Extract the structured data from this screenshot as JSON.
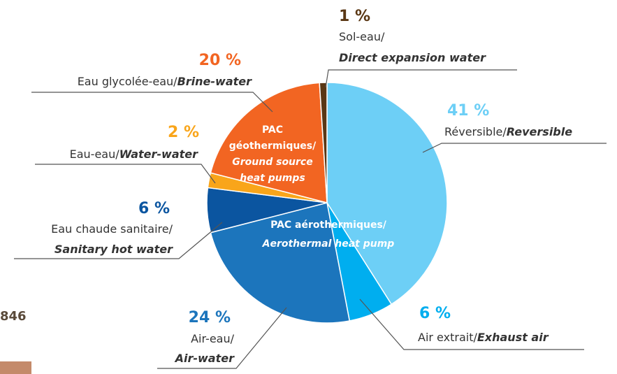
{
  "chart_data": {
    "type": "pie",
    "categories": [
      {
        "fr": "Réversible/",
        "en": "Reversible"
      },
      {
        "fr": "Air extrait/",
        "en": "Exhaust air"
      },
      {
        "fr": "Air-eau/",
        "en": "Air-water"
      },
      {
        "fr": "Eau chaude sanitaire/",
        "en": "Sanitary hot water"
      },
      {
        "fr": "Eau-eau/",
        "en": "Water-water"
      },
      {
        "fr": "Eau glycolée-eau/",
        "en": "Brine-water"
      },
      {
        "fr": "Sol-eau/",
        "en": "Direct expansion water"
      }
    ],
    "values": [
      41,
      6,
      24,
      6,
      2,
      20,
      1
    ],
    "value_labels": [
      "41 %",
      "6 %",
      "24 %",
      "6 %",
      "2 %",
      "20 %",
      "1 %"
    ],
    "colors": [
      "#6dcff6",
      "#00aeef",
      "#1c75bc",
      "#0b55a0",
      "#f9a51a",
      "#f26522",
      "#5a3714"
    ],
    "label_colors": [
      "#6dcff6",
      "#00aeef",
      "#1c75bc",
      "#0b55a0",
      "#f9a51a",
      "#f26522",
      "#5a3714"
    ],
    "groups": [
      {
        "fr": [
          "PAC",
          "géothermiques/"
        ],
        "en": [
          "Ground source",
          "heat pumps"
        ]
      },
      {
        "fr": [
          "PAC aérothermiques/"
        ],
        "en": [
          "Aerothermal heat pump"
        ]
      }
    ],
    "side_text": "846"
  }
}
